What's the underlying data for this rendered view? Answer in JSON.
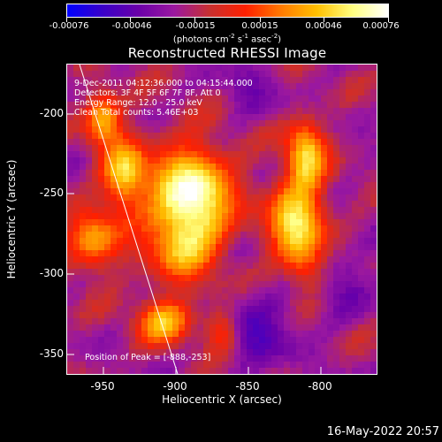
{
  "colorbar": {
    "tick_labels": [
      "-0.00076",
      "-0.00046",
      "-0.00015",
      "0.00015",
      "0.00046",
      "0.00076"
    ],
    "units_prefix": "(photons cm",
    "units_exp1": "-2",
    "units_mid": " s",
    "units_exp2": "-1",
    "units_mid2": " asec",
    "units_exp3": "-2",
    "units_suffix": ")",
    "colormap": [
      "#0000ff",
      "#3a00c8",
      "#6a00a8",
      "#9a18a0",
      "#c83030",
      "#ff2000",
      "#ff7a00",
      "#ffc000",
      "#ffff80",
      "#ffffff"
    ]
  },
  "title": "Reconstructed RHESSI Image",
  "overlay": {
    "time_range": "9-Dec-2011 04:12:36.000 to 04:15:44.000",
    "detectors": "Detectors: 3F 4F 5F 6F 7F 8F, Att 0",
    "energy": "Energy Range: 12.0 - 25.0 keV",
    "clean": "Clean     Total counts: 5.46E+03",
    "peak": "Position of Peak = [-888,-253]"
  },
  "axes": {
    "xlabel": "Heliocentric X (arcsec)",
    "ylabel": "Heliocentric Y (arcsec)",
    "x_ticks": [
      "-950",
      "-900",
      "-850",
      "-800"
    ],
    "y_ticks": [
      "-200",
      "-250",
      "-300",
      "-350"
    ]
  },
  "timestamp": "16-May-2022 20:57"
}
